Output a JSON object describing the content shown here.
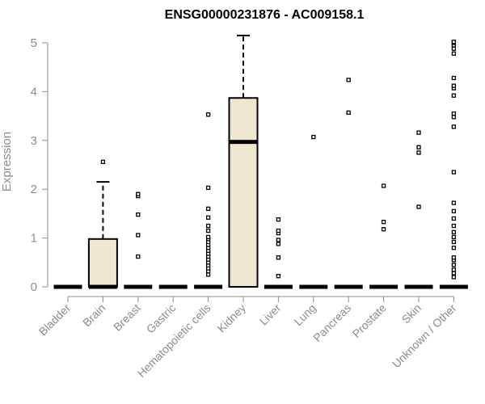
{
  "chart_data": {
    "type": "box",
    "title": "ENSG00000231876 - AC009158.1",
    "xlabel": "",
    "ylabel": "Expression",
    "ylim": [
      0,
      5.15
    ],
    "yticks": [
      0,
      1,
      2,
      3,
      4,
      5
    ],
    "grid": false,
    "box_fill": "#efe7cf",
    "categories": [
      "Bladder",
      "Brain",
      "Breast",
      "Gastric",
      "Hematopoietic cells",
      "Kidney",
      "Liver",
      "Lung",
      "Pancreas",
      "Prostate",
      "Skin",
      "Unknown / Other"
    ],
    "boxes": [
      {
        "category": "Bladder",
        "min": 0,
        "q1": 0,
        "median": 0,
        "q3": 0,
        "max": 0,
        "outliers": []
      },
      {
        "category": "Brain",
        "min": 0,
        "q1": 0,
        "median": 0,
        "q3": 0.98,
        "max": 2.15,
        "outliers": [
          2.56
        ]
      },
      {
        "category": "Breast",
        "min": 0,
        "q1": 0,
        "median": 0,
        "q3": 0,
        "max": 0,
        "outliers": [
          0.62,
          1.06,
          1.48,
          1.86,
          1.9
        ]
      },
      {
        "category": "Gastric",
        "min": 0,
        "q1": 0,
        "median": 0,
        "q3": 0,
        "max": 0,
        "outliers": []
      },
      {
        "category": "Hematopoietic cells",
        "min": 0,
        "q1": 0,
        "median": 0,
        "q3": 0,
        "max": 0,
        "outliers": [
          0.25,
          0.32,
          0.38,
          0.44,
          0.5,
          0.56,
          0.62,
          0.68,
          0.74,
          0.8,
          0.86,
          0.92,
          0.98,
          1.02,
          1.15,
          1.25,
          1.42,
          1.6,
          2.03,
          3.53
        ]
      },
      {
        "category": "Kidney",
        "min": 0,
        "q1": 0,
        "median": 2.97,
        "q3": 3.87,
        "max": 5.15,
        "outliers": []
      },
      {
        "category": "Liver",
        "min": 0,
        "q1": 0,
        "median": 0,
        "q3": 0,
        "max": 0,
        "outliers": [
          0.22,
          0.6,
          0.88,
          0.96,
          1.1,
          1.15,
          1.38
        ]
      },
      {
        "category": "Lung",
        "min": 0,
        "q1": 0,
        "median": 0,
        "q3": 0,
        "max": 0,
        "outliers": [
          3.07
        ]
      },
      {
        "category": "Pancreas",
        "min": 0,
        "q1": 0,
        "median": 0,
        "q3": 0,
        "max": 0,
        "outliers": [
          3.57,
          4.24
        ]
      },
      {
        "category": "Prostate",
        "min": 0,
        "q1": 0,
        "median": 0,
        "q3": 0,
        "max": 0,
        "outliers": [
          1.18,
          1.33,
          2.07
        ]
      },
      {
        "category": "Skin",
        "min": 0,
        "q1": 0,
        "median": 0,
        "q3": 0,
        "max": 0,
        "outliers": [
          1.64,
          2.75,
          2.86,
          3.16
        ]
      },
      {
        "category": "Unknown / Other",
        "min": 0,
        "q1": 0,
        "median": 0,
        "q3": 0,
        "max": 0,
        "outliers": [
          0.2,
          0.28,
          0.35,
          0.45,
          0.55,
          0.6,
          0.8,
          0.92,
          1.02,
          1.12,
          1.25,
          1.4,
          1.55,
          1.72,
          2.35,
          3.28,
          3.48,
          3.55,
          3.92,
          4.07,
          4.12,
          4.28,
          4.78,
          4.88,
          4.95,
          5.0,
          5.02
        ]
      }
    ]
  }
}
